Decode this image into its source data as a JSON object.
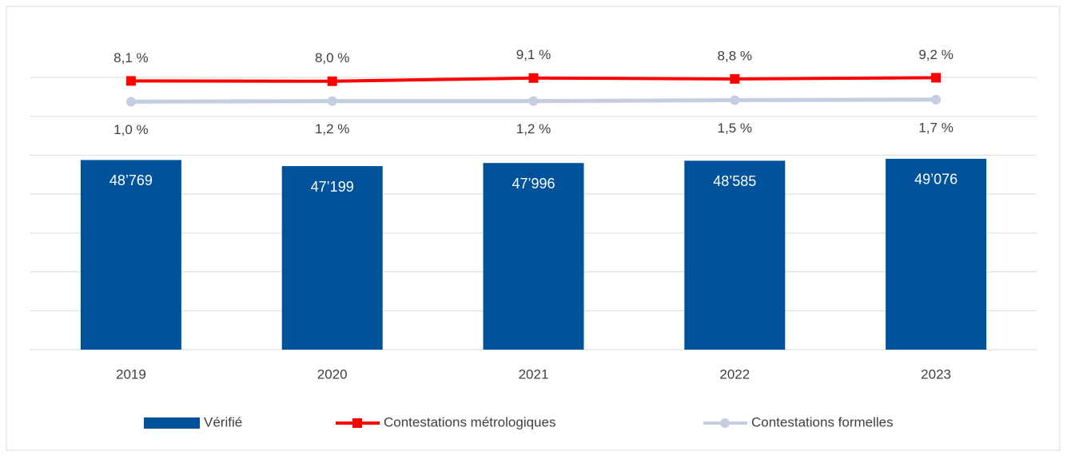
{
  "chart_data": {
    "type": "bar",
    "categories": [
      "2019",
      "2020",
      "2021",
      "2022",
      "2023"
    ],
    "series": [
      {
        "name": "Vérifié",
        "type": "bar",
        "color": "#00539b",
        "values": [
          48769,
          47199,
          47996,
          48585,
          49076
        ],
        "value_labels": [
          "48’769",
          "47’199",
          "47’996",
          "48’585",
          "49’076"
        ]
      },
      {
        "name": "Contestations métrologiques",
        "type": "line",
        "axis": "y2",
        "marker": "square",
        "color": "#ff0000",
        "values": [
          8.1,
          8.0,
          9.1,
          8.8,
          9.2
        ],
        "value_labels": [
          "8,1 %",
          "8,0 %",
          "9,1 %",
          "8,8 %",
          "9,2 %"
        ],
        "label_position": "above"
      },
      {
        "name": "Contestations formelles",
        "type": "line",
        "axis": "y2",
        "marker": "circle",
        "color": "#c5cde0",
        "values": [
          1.0,
          1.2,
          1.2,
          1.5,
          1.7
        ],
        "value_labels": [
          "1,0 %",
          "1,2 %",
          "1,2 %",
          "1,5 %",
          "1,7 %"
        ],
        "label_position": "below"
      }
    ],
    "ylim": [
      0,
      70000
    ],
    "yticks": [
      0,
      10000,
      20000,
      30000,
      40000,
      50000,
      60000,
      70000
    ],
    "y2lim": [
      -84,
      9.3
    ],
    "grid": true,
    "legend": "bottom"
  }
}
